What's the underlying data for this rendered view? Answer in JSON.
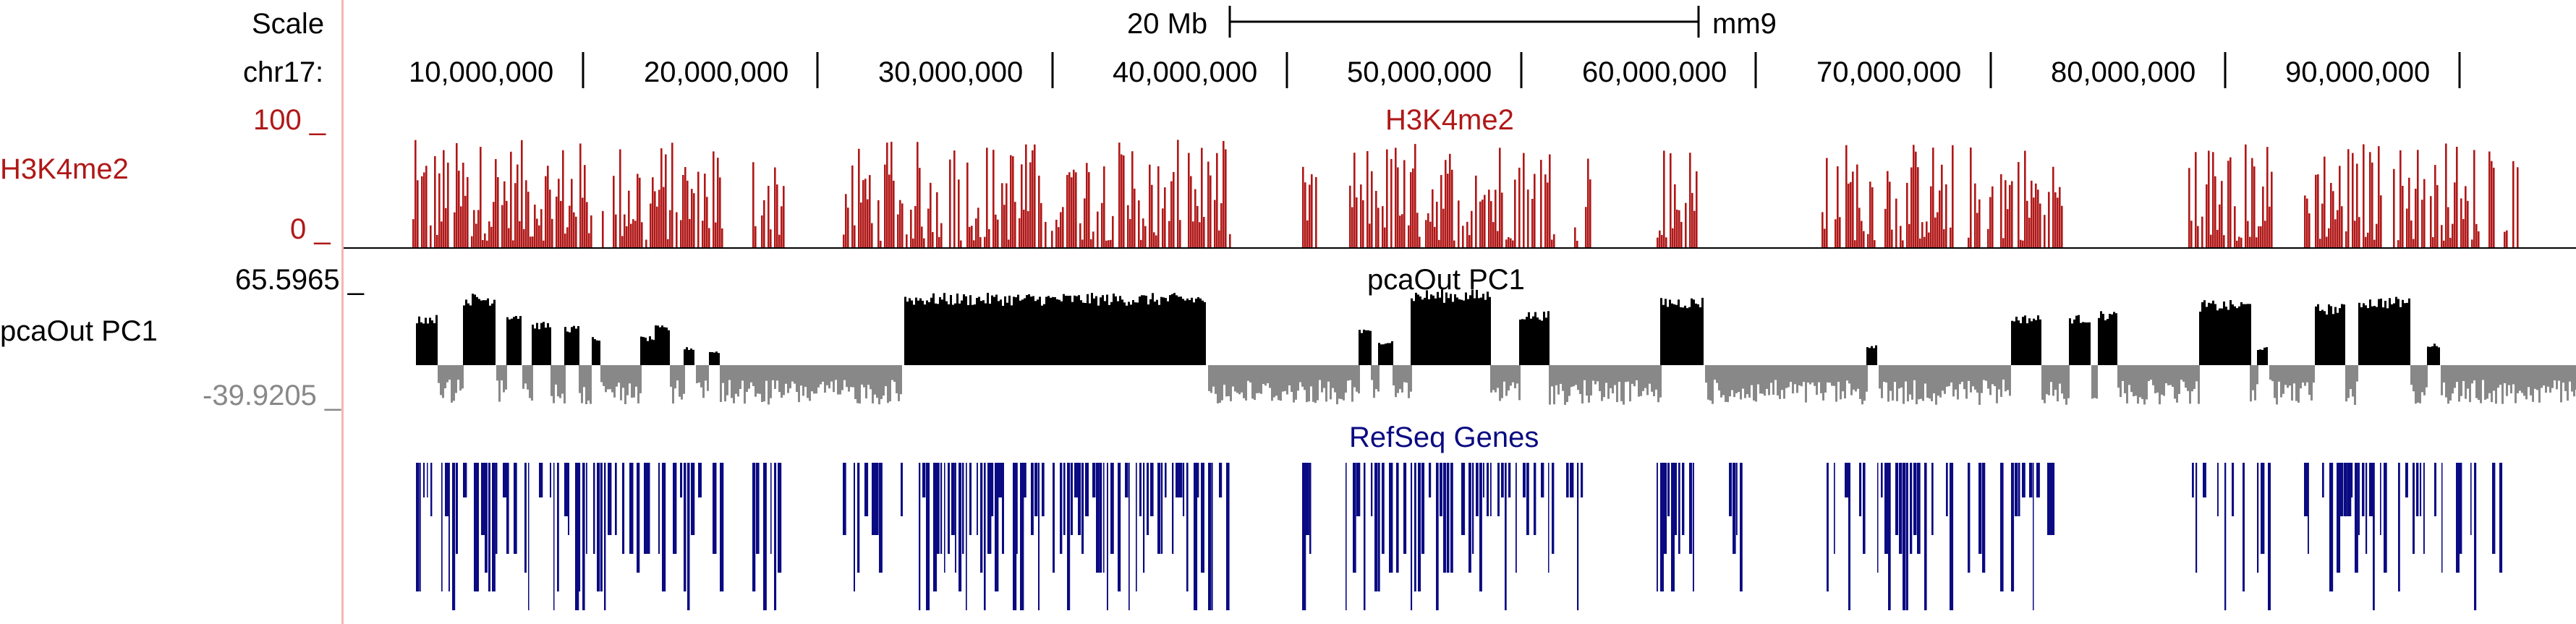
{
  "ruler": {
    "scale_label": "Scale",
    "scale_bar_text": "20 Mb",
    "assembly": "mm9",
    "chrom_label": "chr17:",
    "positions": [
      "10,000,000",
      "20,000,000",
      "30,000,000",
      "40,000,000",
      "50,000,000",
      "60,000,000",
      "70,000,000",
      "80,000,000",
      "90,000,000"
    ]
  },
  "tracks": {
    "h3k4me2": {
      "name": "H3K4me2",
      "title": "H3K4me2",
      "max_label": "100 _",
      "min_label": "0 _",
      "color": "#b01818"
    },
    "pca": {
      "name": "pcaOut PC1",
      "title": "pcaOut PC1",
      "max_label": "65.5965 _",
      "min_label": "-39.9205 _",
      "pos_color": "#000000",
      "neg_color": "#888888"
    },
    "refseq": {
      "title": "RefSeq Genes",
      "color": "#0a0a82"
    }
  }
}
